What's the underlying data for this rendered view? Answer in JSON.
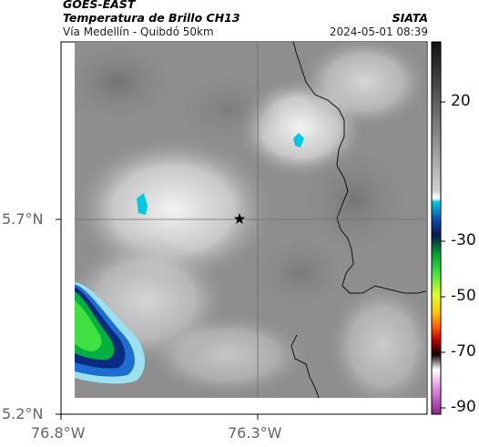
{
  "header": {
    "satellite": "GOES-EAST",
    "product": "Temperatura de Brillo CH13",
    "region": "Vía Medellín - Quibdó 50km",
    "organization": "SIATA",
    "timestamp": "2024-05-01 08:39"
  },
  "map": {
    "lat_ticks": [
      "5.7°N",
      "5.2°N"
    ],
    "lon_ticks": [
      "76.8°W",
      "76.3°W"
    ],
    "marker_icon": "star-icon"
  },
  "colorbar": {
    "ticks": [
      "20",
      "-30",
      "-50",
      "-70",
      "-90"
    ]
  }
}
